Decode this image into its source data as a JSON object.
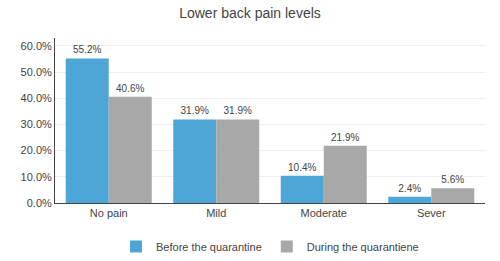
{
  "chart_data": {
    "type": "bar",
    "title": "Lower back pain levels",
    "categories": [
      "No pain",
      "Mild",
      "Moderate",
      "Sever"
    ],
    "series": [
      {
        "name": "Before the quarantine",
        "color": "#4DA6D6",
        "values": [
          55.2,
          31.9,
          10.4,
          2.4
        ],
        "value_labels": [
          "55.2%",
          "31.9%",
          "10.4%",
          "2.4%"
        ]
      },
      {
        "name": "During the quarantiene",
        "color": "#A8A8A8",
        "values": [
          40.6,
          31.9,
          21.9,
          5.6
        ],
        "value_labels": [
          "40.6%",
          "31.9%",
          "21.9%",
          "5.6%"
        ]
      }
    ],
    "ylim": [
      0,
      63
    ],
    "yticks": [
      {
        "value": 0.0,
        "label": "0.0%"
      },
      {
        "value": 10.0,
        "label": "10.0%"
      },
      {
        "value": 20.0,
        "label": "20.0%"
      },
      {
        "value": 30.0,
        "label": "30.0%"
      },
      {
        "value": 40.0,
        "label": "40.0%"
      },
      {
        "value": 50.0,
        "label": "50.0%"
      },
      {
        "value": 60.0,
        "label": "60.0%"
      }
    ],
    "grid": true,
    "legend": "bottom",
    "data_labels": true
  }
}
